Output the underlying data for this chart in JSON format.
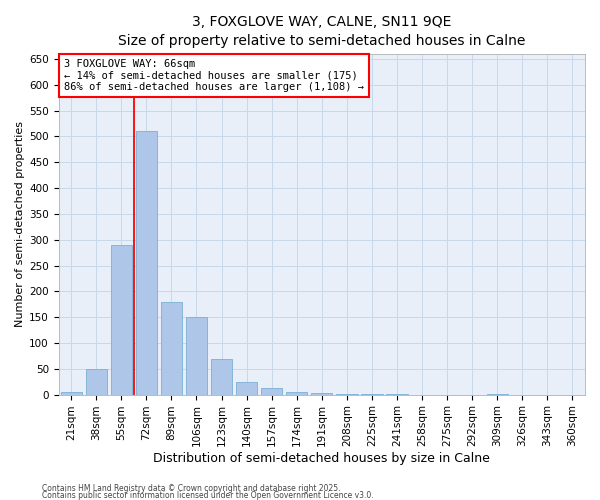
{
  "title": "3, FOXGLOVE WAY, CALNE, SN11 9QE",
  "subtitle": "Size of property relative to semi-detached houses in Calne",
  "xlabel": "Distribution of semi-detached houses by size in Calne",
  "ylabel": "Number of semi-detached properties",
  "bins": [
    "21sqm",
    "38sqm",
    "55sqm",
    "72sqm",
    "89sqm",
    "106sqm",
    "123sqm",
    "140sqm",
    "157sqm",
    "174sqm",
    "191sqm",
    "208sqm",
    "225sqm",
    "241sqm",
    "258sqm",
    "275sqm",
    "292sqm",
    "309sqm",
    "326sqm",
    "343sqm",
    "360sqm"
  ],
  "bar_values": [
    5,
    50,
    290,
    510,
    180,
    150,
    68,
    25,
    12,
    5,
    3,
    1,
    1,
    1,
    0,
    0,
    0,
    1,
    0,
    0,
    0
  ],
  "bar_color": "#aec6e8",
  "bar_edge_color": "#7aafd4",
  "grid_color": "#c8d8eb",
  "background_color": "#e8eff8",
  "red_line_x": 2.5,
  "annotation_title": "3 FOXGLOVE WAY: 66sqm",
  "annotation_line1": "← 14% of semi-detached houses are smaller (175)",
  "annotation_line2": "86% of semi-detached houses are larger (1,108) →",
  "ylim": [
    0,
    660
  ],
  "yticks": [
    0,
    50,
    100,
    150,
    200,
    250,
    300,
    350,
    400,
    450,
    500,
    550,
    600,
    650
  ],
  "footnote1": "Contains HM Land Registry data © Crown copyright and database right 2025.",
  "footnote2": "Contains public sector information licensed under the Open Government Licence v3.0.",
  "title_fontsize": 10,
  "axis_label_fontsize": 8,
  "tick_fontsize": 7.5
}
